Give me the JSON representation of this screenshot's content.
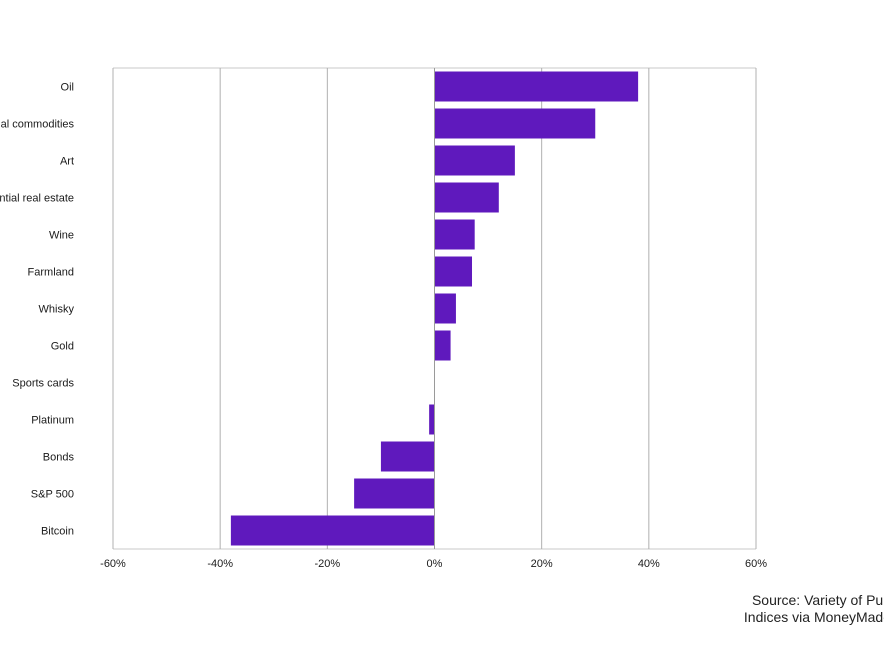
{
  "chart_data": {
    "type": "bar",
    "orientation": "horizontal",
    "categories": [
      "Oil",
      "Industrial commodities",
      "Art",
      "Residential real estate",
      "Wine",
      "Farmland",
      "Whisky",
      "Gold",
      "Sports cards",
      "Platinum",
      "Bonds",
      "S&P 500",
      "Bitcoin"
    ],
    "visible_labels": [
      "Oil",
      "al commodities",
      "Art",
      "ntial real estate",
      "Wine",
      "Farmland",
      "Whisky",
      "Gold",
      "Sports cards",
      "Platinum",
      "Bonds",
      "S&P 500",
      "Bitcoin"
    ],
    "values": [
      38,
      30,
      15,
      12,
      7.5,
      7,
      4,
      3,
      0,
      -1,
      -10,
      -15,
      -38
    ],
    "xlim": [
      -60,
      60
    ],
    "xticks": [
      -60,
      -40,
      -20,
      0,
      20,
      40,
      60
    ],
    "tick_labels": [
      "-60%",
      "-40%",
      "-20%",
      "0%",
      "20%",
      "40%",
      "60%"
    ],
    "grid": true,
    "bar_color": "#5f19bd",
    "title": "",
    "xlabel": "",
    "ylabel": ""
  },
  "source": {
    "line1": "Source: Variety of Pub",
    "line2": "Indices via MoneyMade"
  }
}
